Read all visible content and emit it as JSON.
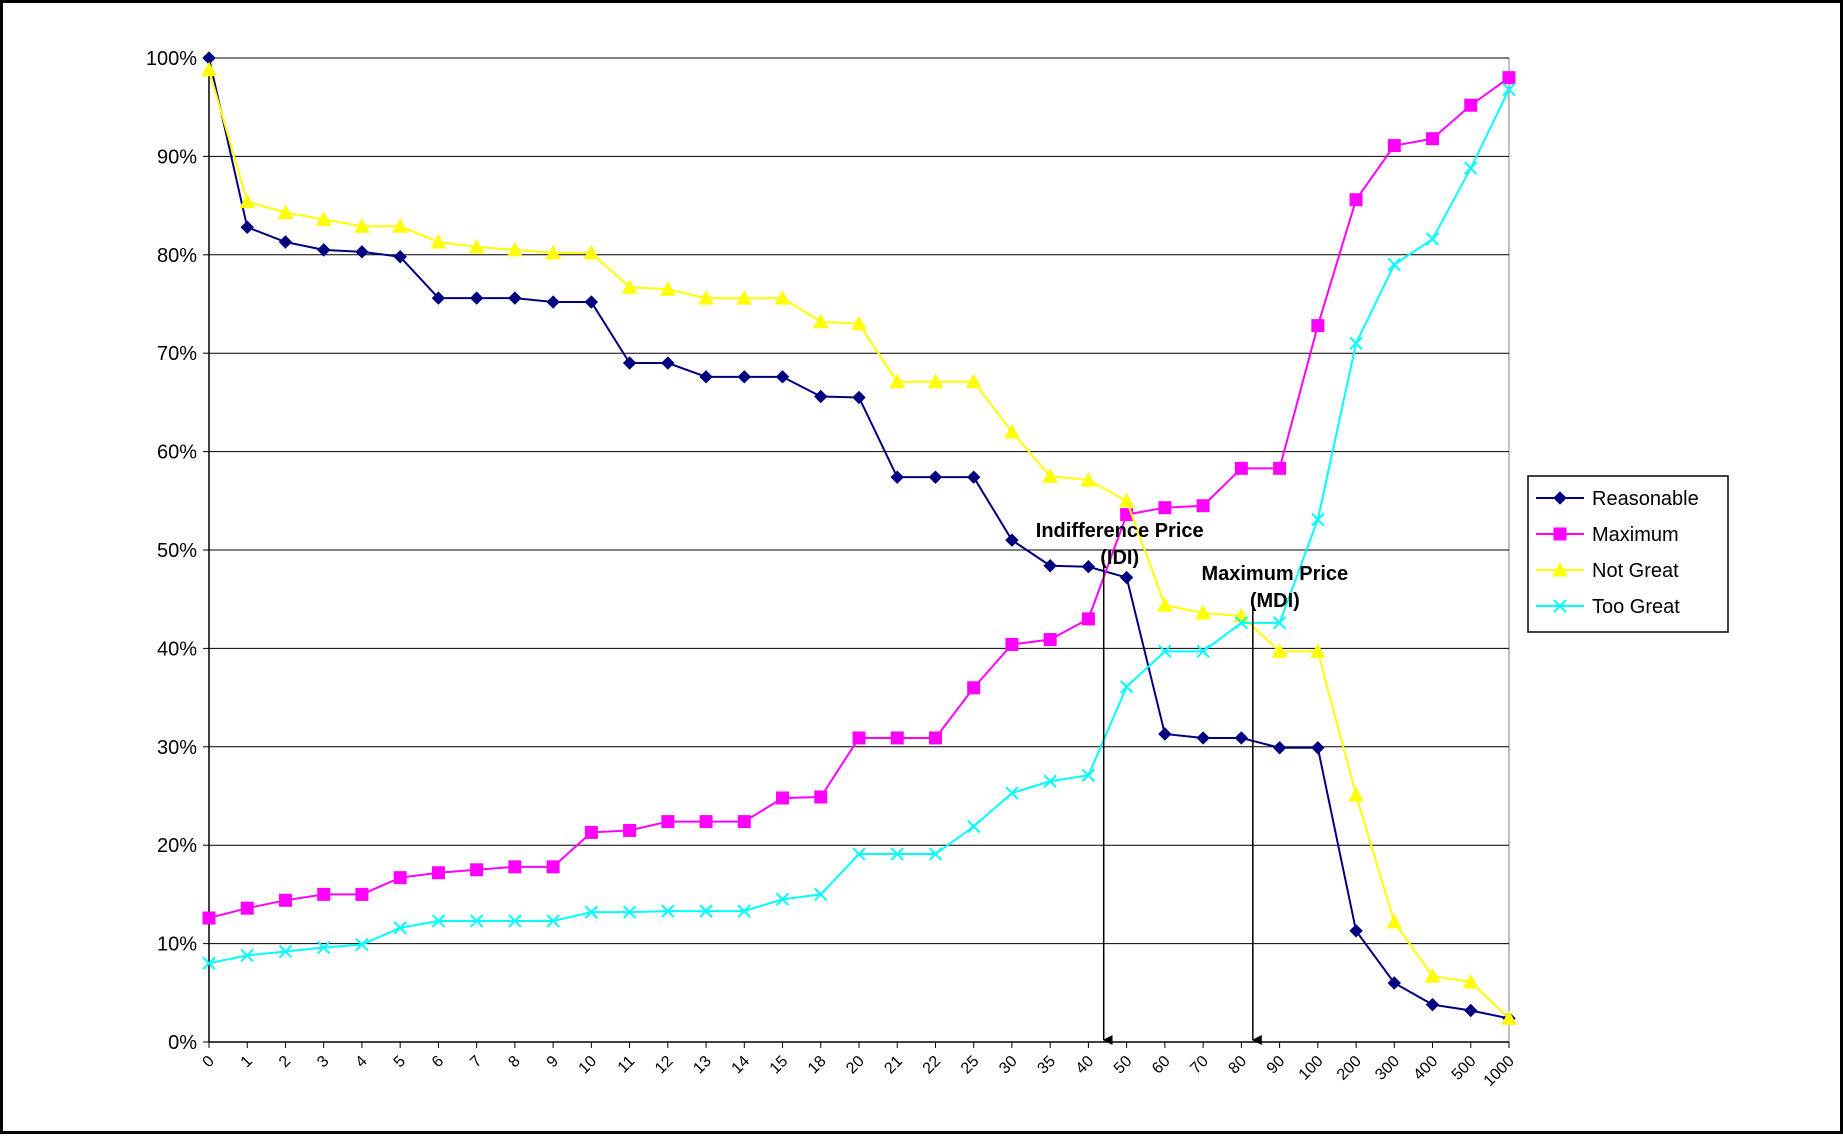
{
  "chart_data": {
    "type": "line",
    "categories": [
      "0",
      "1",
      "2",
      "3",
      "4",
      "5",
      "6",
      "7",
      "8",
      "9",
      "10",
      "11",
      "12",
      "13",
      "14",
      "15",
      "18",
      "20",
      "21",
      "22",
      "25",
      "30",
      "35",
      "40",
      "50",
      "60",
      "70",
      "80",
      "90",
      "100",
      "200",
      "300",
      "400",
      "500",
      "1000"
    ],
    "ylim": [
      0,
      100
    ],
    "yticks": [
      0,
      10,
      20,
      30,
      40,
      50,
      60,
      70,
      80,
      90,
      100
    ],
    "ytick_suffix": "%",
    "grid": "horizontal",
    "legend_position": "right",
    "series": [
      {
        "name": "Reasonable",
        "color": "#000080",
        "marker": "diamond",
        "values": [
          100,
          82.8,
          81.3,
          80.5,
          80.3,
          79.8,
          75.6,
          75.6,
          75.6,
          75.2,
          75.2,
          69.0,
          69.0,
          67.6,
          67.6,
          67.6,
          65.6,
          65.5,
          57.4,
          57.4,
          57.4,
          51.0,
          48.4,
          48.3,
          47.2,
          31.3,
          30.9,
          30.9,
          29.9,
          29.9,
          11.3,
          6.0,
          3.8,
          3.2,
          2.4
        ]
      },
      {
        "name": "Maximum",
        "color": "#FF00FF",
        "marker": "square",
        "values": [
          12.6,
          13.6,
          14.4,
          15.0,
          15.0,
          16.7,
          17.2,
          17.5,
          17.8,
          17.8,
          21.3,
          21.5,
          22.4,
          22.4,
          22.4,
          24.8,
          24.9,
          30.9,
          30.9,
          30.9,
          36.0,
          40.4,
          40.9,
          43.0,
          53.6,
          54.3,
          54.5,
          58.3,
          58.3,
          72.8,
          85.6,
          91.1,
          91.8,
          95.2,
          98.0
        ]
      },
      {
        "name": "Not Great",
        "color": "#FFFF00",
        "marker": "triangle",
        "values": [
          98.8,
          85.4,
          84.3,
          83.6,
          82.9,
          82.9,
          81.3,
          80.8,
          80.5,
          80.2,
          80.2,
          76.7,
          76.5,
          75.6,
          75.6,
          75.6,
          73.2,
          73.0,
          67.1,
          67.1,
          67.1,
          62.0,
          57.5,
          57.1,
          55.0,
          44.4,
          43.6,
          43.3,
          39.7,
          39.7,
          25.1,
          12.2,
          6.7,
          6.1,
          2.4
        ]
      },
      {
        "name": "Too Great",
        "color": "#00FFFF",
        "marker": "x",
        "values": [
          8.0,
          8.8,
          9.2,
          9.6,
          9.9,
          11.6,
          12.3,
          12.3,
          12.3,
          12.3,
          13.2,
          13.2,
          13.3,
          13.3,
          13.3,
          14.5,
          15.0,
          19.1,
          19.1,
          19.1,
          21.9,
          25.3,
          26.5,
          27.1,
          36.1,
          39.7,
          39.7,
          42.6,
          42.6,
          53.1,
          71.0,
          79.0,
          81.6,
          88.8,
          96.8
        ]
      }
    ],
    "annotations": [
      {
        "text_line1": "Indifference Price",
        "text_line2": "(IDI)",
        "x_index": 23.4
      },
      {
        "text_line1": "Maximum Price",
        "text_line2": "(MDI)",
        "x_index": 27.3
      }
    ]
  }
}
